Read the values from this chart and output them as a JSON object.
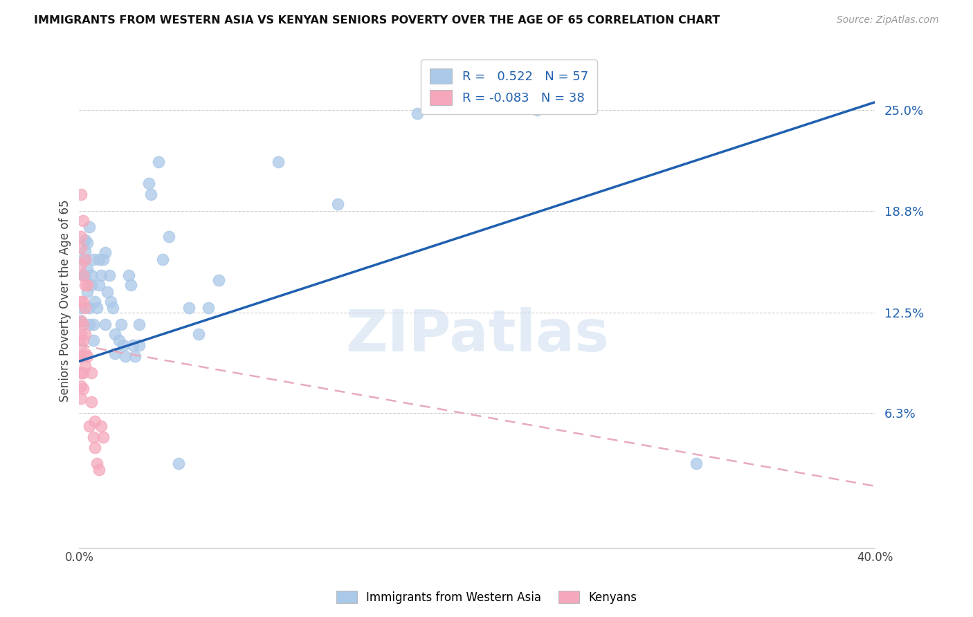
{
  "title": "IMMIGRANTS FROM WESTERN ASIA VS KENYAN SENIORS POVERTY OVER THE AGE OF 65 CORRELATION CHART",
  "source": "Source: ZipAtlas.com",
  "ylabel": "Seniors Poverty Over the Age of 65",
  "yticks": [
    0.063,
    0.125,
    0.188,
    0.25
  ],
  "ytick_labels": [
    "6.3%",
    "12.5%",
    "18.8%",
    "25.0%"
  ],
  "xmin": 0.0,
  "xmax": 0.4,
  "ymin": -0.02,
  "ymax": 0.285,
  "blue_r": "0.522",
  "blue_n": "57",
  "pink_r": "-0.083",
  "pink_n": "38",
  "blue_color": "#aac8e8",
  "pink_color": "#f5a8bb",
  "blue_line_color": "#2060b0",
  "pink_line_color": "#e8aabb",
  "legend_label_blue": "Immigrants from Western Asia",
  "legend_label_pink": "Kenyans",
  "watermark": "ZIPatlas",
  "blue_trend": [
    0.095,
    0.255
  ],
  "pink_trend": [
    0.105,
    0.018
  ],
  "blue_points": [
    [
      0.001,
      0.12
    ],
    [
      0.001,
      0.128
    ],
    [
      0.002,
      0.148
    ],
    [
      0.002,
      0.158
    ],
    [
      0.003,
      0.17
    ],
    [
      0.003,
      0.163
    ],
    [
      0.003,
      0.148
    ],
    [
      0.004,
      0.168
    ],
    [
      0.004,
      0.152
    ],
    [
      0.004,
      0.138
    ],
    [
      0.005,
      0.178
    ],
    [
      0.005,
      0.128
    ],
    [
      0.005,
      0.118
    ],
    [
      0.006,
      0.148
    ],
    [
      0.006,
      0.142
    ],
    [
      0.007,
      0.158
    ],
    [
      0.007,
      0.118
    ],
    [
      0.007,
      0.108
    ],
    [
      0.008,
      0.132
    ],
    [
      0.009,
      0.128
    ],
    [
      0.01,
      0.158
    ],
    [
      0.01,
      0.142
    ],
    [
      0.011,
      0.148
    ],
    [
      0.012,
      0.158
    ],
    [
      0.013,
      0.162
    ],
    [
      0.013,
      0.118
    ],
    [
      0.014,
      0.138
    ],
    [
      0.015,
      0.148
    ],
    [
      0.016,
      0.132
    ],
    [
      0.017,
      0.128
    ],
    [
      0.018,
      0.112
    ],
    [
      0.018,
      0.1
    ],
    [
      0.02,
      0.108
    ],
    [
      0.021,
      0.118
    ],
    [
      0.022,
      0.105
    ],
    [
      0.023,
      0.098
    ],
    [
      0.025,
      0.148
    ],
    [
      0.026,
      0.142
    ],
    [
      0.027,
      0.105
    ],
    [
      0.028,
      0.098
    ],
    [
      0.03,
      0.118
    ],
    [
      0.03,
      0.105
    ],
    [
      0.035,
      0.205
    ],
    [
      0.036,
      0.198
    ],
    [
      0.04,
      0.218
    ],
    [
      0.042,
      0.158
    ],
    [
      0.045,
      0.172
    ],
    [
      0.05,
      0.032
    ],
    [
      0.055,
      0.128
    ],
    [
      0.06,
      0.112
    ],
    [
      0.065,
      0.128
    ],
    [
      0.07,
      0.145
    ],
    [
      0.1,
      0.218
    ],
    [
      0.13,
      0.192
    ],
    [
      0.17,
      0.248
    ],
    [
      0.23,
      0.25
    ],
    [
      0.31,
      0.032
    ]
  ],
  "pink_points": [
    [
      0.001,
      0.198
    ],
    [
      0.001,
      0.172
    ],
    [
      0.001,
      0.165
    ],
    [
      0.001,
      0.155
    ],
    [
      0.001,
      0.132
    ],
    [
      0.001,
      0.12
    ],
    [
      0.001,
      0.112
    ],
    [
      0.001,
      0.105
    ],
    [
      0.001,
      0.098
    ],
    [
      0.001,
      0.088
    ],
    [
      0.001,
      0.08
    ],
    [
      0.001,
      0.072
    ],
    [
      0.002,
      0.182
    ],
    [
      0.002,
      0.148
    ],
    [
      0.002,
      0.132
    ],
    [
      0.002,
      0.118
    ],
    [
      0.002,
      0.108
    ],
    [
      0.002,
      0.098
    ],
    [
      0.002,
      0.088
    ],
    [
      0.002,
      0.078
    ],
    [
      0.003,
      0.158
    ],
    [
      0.003,
      0.142
    ],
    [
      0.003,
      0.128
    ],
    [
      0.003,
      0.112
    ],
    [
      0.003,
      0.1
    ],
    [
      0.003,
      0.092
    ],
    [
      0.004,
      0.142
    ],
    [
      0.004,
      0.098
    ],
    [
      0.005,
      0.055
    ],
    [
      0.006,
      0.088
    ],
    [
      0.006,
      0.07
    ],
    [
      0.007,
      0.048
    ],
    [
      0.008,
      0.058
    ],
    [
      0.008,
      0.042
    ],
    [
      0.009,
      0.032
    ],
    [
      0.01,
      0.028
    ],
    [
      0.011,
      0.055
    ],
    [
      0.012,
      0.048
    ]
  ]
}
